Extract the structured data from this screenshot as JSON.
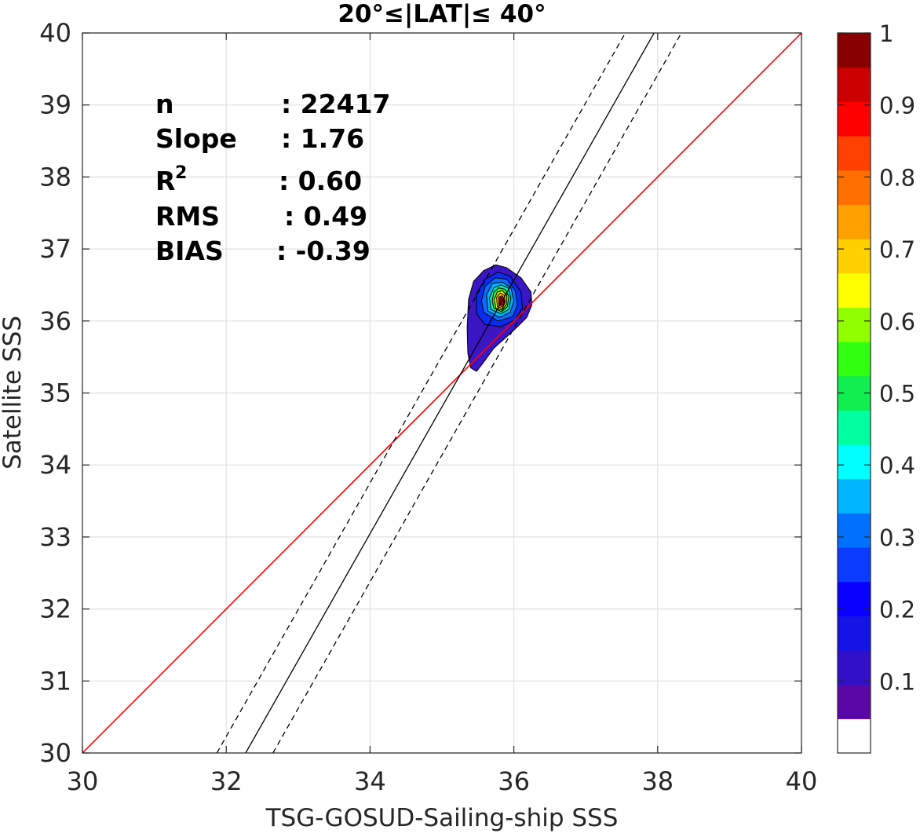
{
  "chart_data": {
    "type": "heatmap",
    "title": "20°≤|LAT|≤ 40°",
    "xlabel": "TSG-GOSUD-Sailing-ship SSS",
    "ylabel": "Satellite SSS",
    "xlim": [
      30,
      40
    ],
    "ylim": [
      30,
      40
    ],
    "xticks": [
      30,
      32,
      34,
      36,
      38,
      40
    ],
    "yticks": [
      30,
      31,
      32,
      33,
      34,
      35,
      36,
      37,
      38,
      39,
      40
    ],
    "grid": true,
    "stats": [
      {
        "label": "n",
        "value": ": 22417"
      },
      {
        "label": "Slope",
        "value": ": 1.76"
      },
      {
        "label": "R",
        "sup": "2",
        "value": ": 0.60"
      },
      {
        "label": "RMS",
        "value": ": 0.49"
      },
      {
        "label": "BIAS",
        "value": ": -0.39"
      }
    ],
    "lines": [
      {
        "name": "one-to-one",
        "color": "#ff0000",
        "style": "solid",
        "x": [
          30,
          40
        ],
        "y": [
          30,
          40
        ]
      },
      {
        "name": "regression",
        "color": "#000000",
        "style": "solid",
        "x": [
          32.27,
          37.95
        ],
        "y": [
          30,
          40
        ]
      },
      {
        "name": "regression-upper",
        "color": "#000000",
        "style": "dashed",
        "x": [
          31.87,
          37.55
        ],
        "y": [
          30,
          40
        ]
      },
      {
        "name": "regression-lower",
        "color": "#000000",
        "style": "dashed",
        "x": [
          32.65,
          38.33
        ],
        "y": [
          30,
          40
        ]
      }
    ],
    "density_peak": {
      "x": 35.82,
      "y": 36.3
    },
    "contour_levels": [
      {
        "level": 0.05,
        "color": "#3a16c4",
        "points": [
          [
            35.4,
            35.35
          ],
          [
            35.48,
            35.3
          ],
          [
            35.56,
            35.4
          ],
          [
            35.72,
            35.62
          ],
          [
            35.9,
            35.78
          ],
          [
            36.05,
            35.92
          ],
          [
            36.18,
            36.05
          ],
          [
            36.25,
            36.22
          ],
          [
            36.24,
            36.4
          ],
          [
            36.1,
            36.6
          ],
          [
            35.9,
            36.74
          ],
          [
            35.75,
            36.78
          ],
          [
            35.58,
            36.7
          ],
          [
            35.44,
            36.55
          ],
          [
            35.37,
            36.3
          ],
          [
            35.35,
            35.9
          ],
          [
            35.36,
            35.55
          ]
        ]
      },
      {
        "level": 0.15,
        "color": "#0a2cf0",
        "points": [
          [
            35.48,
            36.1
          ],
          [
            35.6,
            35.95
          ],
          [
            35.82,
            35.92
          ],
          [
            36.02,
            36.02
          ],
          [
            36.12,
            36.18
          ],
          [
            36.1,
            36.4
          ],
          [
            35.95,
            36.62
          ],
          [
            35.78,
            36.68
          ],
          [
            35.6,
            36.58
          ],
          [
            35.48,
            36.38
          ]
        ]
      },
      {
        "level": 0.25,
        "color": "#0a6cff",
        "points": [
          [
            35.58,
            36.12
          ],
          [
            35.78,
            36.0
          ],
          [
            35.98,
            36.06
          ],
          [
            36.05,
            36.22
          ],
          [
            36.02,
            36.42
          ],
          [
            35.9,
            36.58
          ],
          [
            35.74,
            36.6
          ],
          [
            35.6,
            36.48
          ],
          [
            35.55,
            36.28
          ]
        ]
      },
      {
        "level": 0.35,
        "color": "#00b4ff",
        "points": [
          [
            35.64,
            36.14
          ],
          [
            35.8,
            36.05
          ],
          [
            35.95,
            36.12
          ],
          [
            36.0,
            36.28
          ],
          [
            35.96,
            36.46
          ],
          [
            35.84,
            36.54
          ],
          [
            35.7,
            36.52
          ],
          [
            35.62,
            36.36
          ]
        ]
      },
      {
        "level": 0.45,
        "color": "#00f0b0",
        "points": [
          [
            35.68,
            36.16
          ],
          [
            35.82,
            36.1
          ],
          [
            35.93,
            36.16
          ],
          [
            35.96,
            36.32
          ],
          [
            35.92,
            36.46
          ],
          [
            35.82,
            36.5
          ],
          [
            35.72,
            36.46
          ],
          [
            35.66,
            36.32
          ]
        ]
      },
      {
        "level": 0.55,
        "color": "#48e01a",
        "points": [
          [
            35.72,
            36.18
          ],
          [
            35.83,
            36.13
          ],
          [
            35.91,
            36.2
          ],
          [
            35.93,
            36.34
          ],
          [
            35.88,
            36.44
          ],
          [
            35.79,
            36.46
          ],
          [
            35.72,
            36.4
          ],
          [
            35.7,
            36.28
          ]
        ]
      },
      {
        "level": 0.65,
        "color": "#ffff00",
        "points": [
          [
            35.75,
            36.18
          ],
          [
            35.84,
            36.15
          ],
          [
            35.9,
            36.24
          ],
          [
            35.9,
            36.36
          ],
          [
            35.84,
            36.42
          ],
          [
            35.77,
            36.4
          ],
          [
            35.73,
            36.3
          ]
        ]
      },
      {
        "level": 0.75,
        "color": "#ffb000",
        "points": [
          [
            35.77,
            36.2
          ],
          [
            35.84,
            36.17
          ],
          [
            35.88,
            36.26
          ],
          [
            35.87,
            36.36
          ],
          [
            35.81,
            36.39
          ],
          [
            35.76,
            36.33
          ]
        ]
      },
      {
        "level": 0.85,
        "color": "#ff5000",
        "points": [
          [
            35.79,
            36.22
          ],
          [
            35.85,
            36.19
          ],
          [
            35.87,
            36.28
          ],
          [
            35.84,
            36.35
          ],
          [
            35.79,
            36.33
          ]
        ]
      },
      {
        "level": 0.95,
        "color": "#d00000",
        "points": [
          [
            35.8,
            36.24
          ],
          [
            35.85,
            36.22
          ],
          [
            35.86,
            36.3
          ],
          [
            35.81,
            36.33
          ]
        ]
      }
    ],
    "colorbar": {
      "min": 0,
      "max": 1,
      "ticks": [
        {
          "value": 0.1,
          "label": "0.1"
        },
        {
          "value": 0.2,
          "label": "0.2"
        },
        {
          "value": 0.3,
          "label": "0.3"
        },
        {
          "value": 0.4,
          "label": "0.4"
        },
        {
          "value": 0.5,
          "label": "0.5"
        },
        {
          "value": 0.6,
          "label": "0.6"
        },
        {
          "value": 0.7,
          "label": "0.7"
        },
        {
          "value": 0.8,
          "label": "0.8"
        },
        {
          "value": 0.9,
          "label": "0.9"
        },
        {
          "value": 1.0,
          "label": "1"
        }
      ],
      "colors": [
        "#ffffff",
        "#5a07a8",
        "#3010c8",
        "#1414e6",
        "#0a00ff",
        "#0a3cff",
        "#0070ff",
        "#00b4ff",
        "#00ffff",
        "#00ffa0",
        "#10ee50",
        "#30ff10",
        "#90ff00",
        "#ffff00",
        "#ffd000",
        "#ffa000",
        "#ff7000",
        "#ff4000",
        "#ff0000",
        "#cc0000",
        "#880000"
      ]
    }
  }
}
